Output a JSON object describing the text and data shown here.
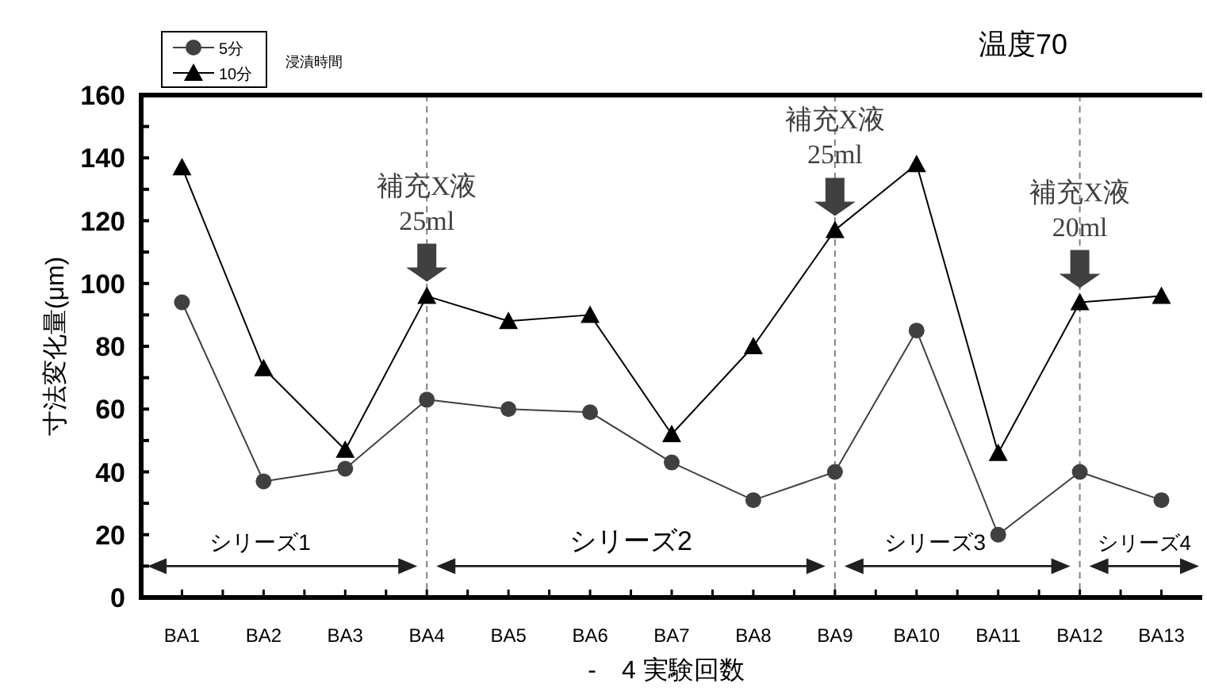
{
  "chart_data": {
    "type": "line",
    "title": "温度70",
    "xlabel": "-　4 実験回数",
    "ylabel": "寸法変化量(μm)",
    "legend_title": "浸漬時間",
    "legend": "top left",
    "categories": [
      "BA1",
      "BA2",
      "BA3",
      "BA4",
      "BA5",
      "BA6",
      "BA7",
      "BA8",
      "BA9",
      "BA10",
      "BA11",
      "BA12",
      "BA13"
    ],
    "series": [
      {
        "name": "5分",
        "color": "#404040",
        "marker": "circle",
        "values": [
          94,
          37,
          41,
          63,
          60,
          59,
          43,
          31,
          40,
          85,
          20,
          40,
          31
        ]
      },
      {
        "name": "10分",
        "color": "#000000",
        "marker": "triangle",
        "values": [
          137,
          73,
          47,
          96,
          88,
          90,
          52,
          80,
          117,
          138,
          46,
          94,
          96
        ]
      }
    ],
    "ylim": [
      0,
      160
    ],
    "yticks": [
      0,
      {
        "value": 10,
        "label": null
      },
      20,
      {
        "value": 30,
        "label": null
      },
      40,
      {
        "value": 50,
        "label": null
      },
      60,
      {
        "value": 70,
        "label": null
      },
      80,
      {
        "value": 90,
        "label": null
      },
      100,
      {
        "value": 110,
        "label": null
      },
      120,
      {
        "value": 130,
        "label": null
      },
      140,
      {
        "value": 150,
        "label": null
      },
      160
    ],
    "grid": false,
    "line_style": "solid",
    "ref_lines": [
      {
        "axis": "x",
        "value": "BA4",
        "label": "補充X液\n25ml",
        "color": "#808080",
        "line_style": "dashed"
      },
      {
        "axis": "x",
        "value": "BA9",
        "label": "補充X液\n25ml",
        "color": "#808080",
        "line_style": "dashed"
      },
      {
        "axis": "x",
        "value": "BA12",
        "label": "補充X液\n20ml",
        "color": "#808080",
        "line_style": "dashed"
      }
    ],
    "annotations": [
      "シリーズ1",
      "シリーズ2",
      "シリーズ3",
      "シリーズ4"
    ]
  }
}
